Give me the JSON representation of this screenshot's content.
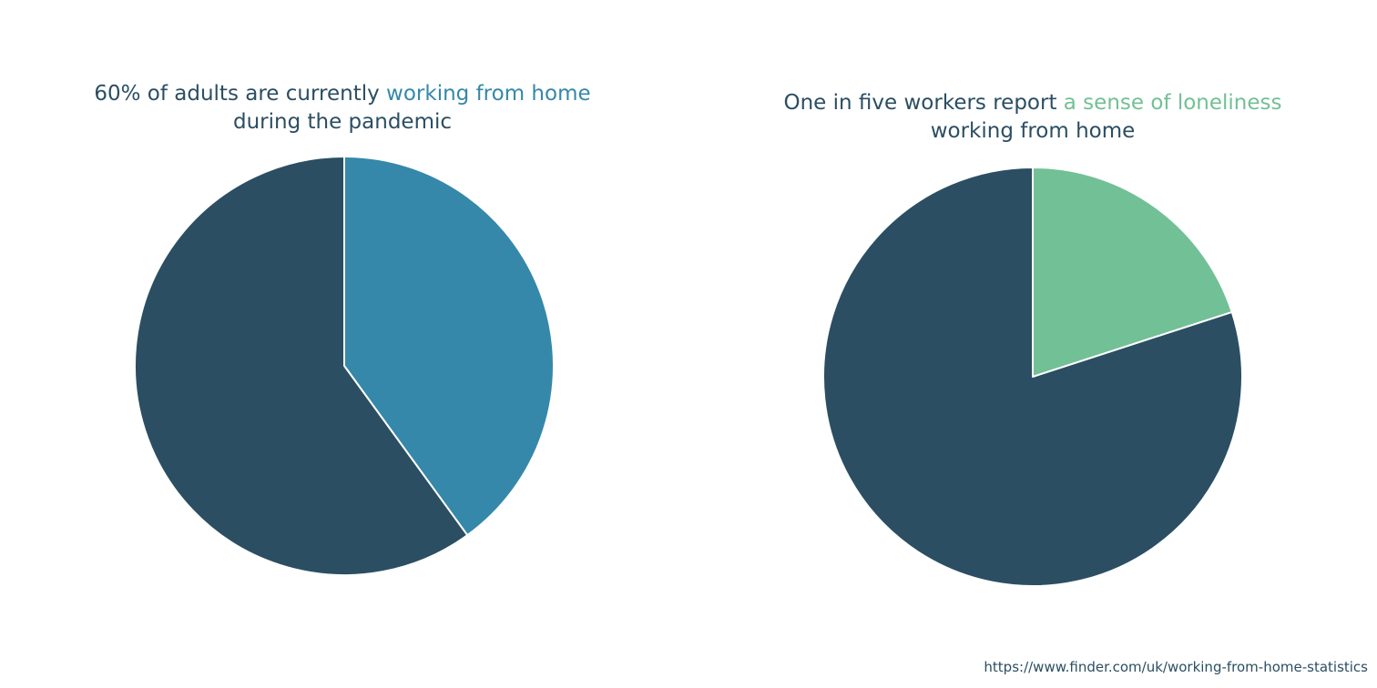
{
  "colors": {
    "dark": "#2b4e62",
    "blue": "#3588a9",
    "green": "#72c095"
  },
  "chart_data": [
    {
      "type": "pie",
      "title_parts": {
        "lead": "60% of adults are currently ",
        "highlight": "working from home",
        "tail": "during the pandemic"
      },
      "slices": [
        {
          "value": 40,
          "color": "#3588a9"
        },
        {
          "value": 60,
          "color": "#2b4e62"
        }
      ]
    },
    {
      "type": "pie",
      "title_parts": {
        "lead": "One in five workers report ",
        "highlight": "a sense of loneliness",
        "tail": "working from home"
      },
      "slices": [
        {
          "value": 20,
          "color": "#72c095"
        },
        {
          "value": 80,
          "color": "#2b4e62"
        }
      ]
    }
  ],
  "source": "https://www.finder.com/uk/working-from-home-statistics"
}
